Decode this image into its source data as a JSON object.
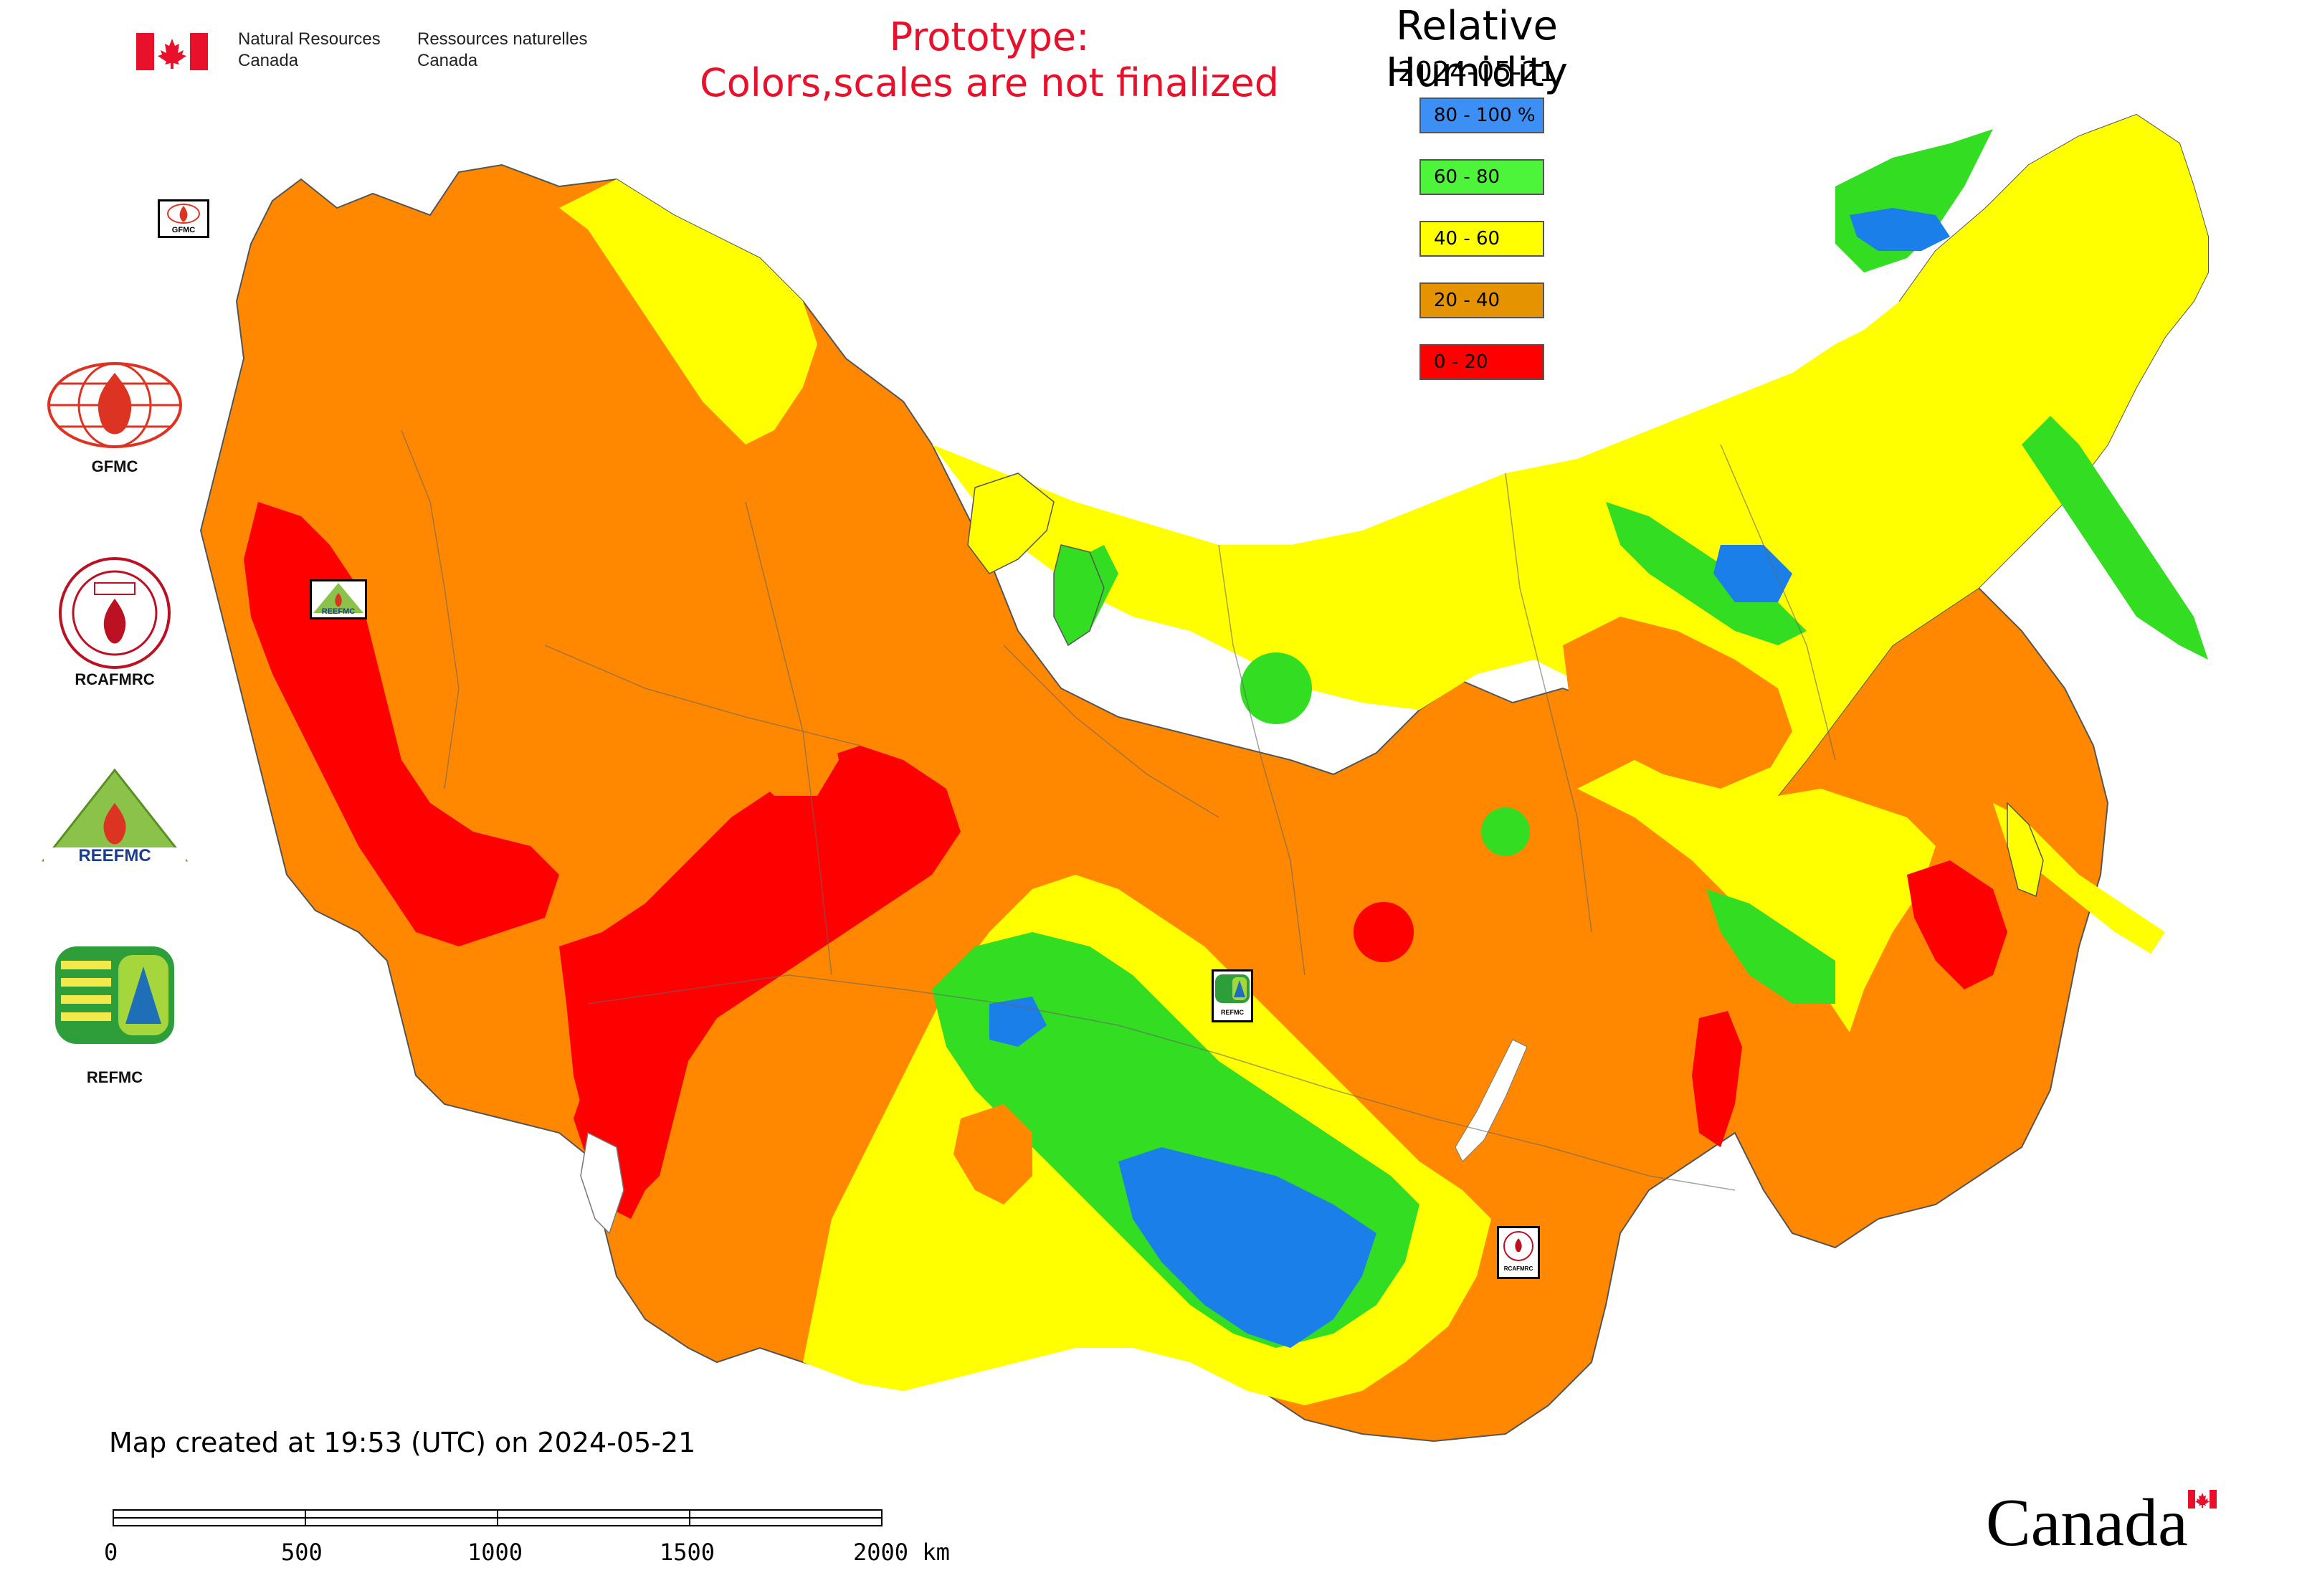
{
  "header": {
    "dept_en_line1": "Natural Resources",
    "dept_en_line2": "Canada",
    "dept_fr_line1": "Ressources naturelles",
    "dept_fr_line2": "Canada",
    "prototype_line1": "Prototype:",
    "prototype_line2": "Colors,scales are not finalized"
  },
  "map": {
    "title": "Relative Humidity",
    "date": "2024-05-21"
  },
  "legend": [
    {
      "label": "80 - 100 %",
      "color": "#3b8ff5"
    },
    {
      "label": "60 - 80",
      "color": "#4df53a"
    },
    {
      "label": "40 - 60",
      "color": "#ffff00"
    },
    {
      "label": "20 - 40",
      "color": "#e59300"
    },
    {
      "label": "0 - 20",
      "color": "#ff0000"
    }
  ],
  "organizations": [
    {
      "label": "GFMC",
      "icon": "gfmc-logo-icon"
    },
    {
      "label": "RCAFMRC",
      "icon": "rcafmrc-logo-icon"
    },
    {
      "label": "REEFMC",
      "icon": "reefmc-logo-icon"
    },
    {
      "label": "REFMC",
      "icon": "refmc-logo-icon"
    }
  ],
  "map_markers": {
    "gfmc": "GFMC",
    "reefmc": "REEFMC",
    "refmc": "REFMC",
    "rcafmrc": "RCAFMRC"
  },
  "footer": {
    "created_text": "Map created at 19:53 (UTC) on 2024-05-21",
    "scale_labels": [
      "0",
      "500",
      "1000",
      "1500",
      "2000 km"
    ],
    "wordmark": "Canada"
  },
  "colors": {
    "orange": "#ff8800",
    "red": "#ff0000",
    "yellow": "#ffff00",
    "green": "#33dd22",
    "blue": "#1a7fe8",
    "accent_red": "#e8102a"
  }
}
